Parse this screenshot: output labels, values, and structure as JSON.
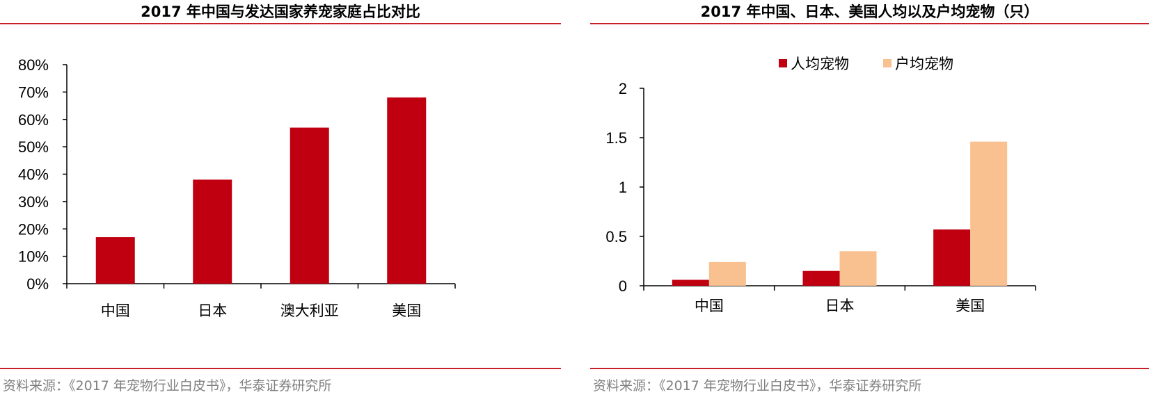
{
  "colors": {
    "accent_rule": "#c8202a",
    "bar_red": "#c00010",
    "bar_peach": "#f9c090",
    "source_text": "#7f7f7f"
  },
  "source_text": "资料来源：《2017 年宠物行业白皮书》，华泰证券研究所",
  "chart_data": [
    {
      "type": "bar",
      "title": "2017 年中国与发达国家养宠家庭占比对比",
      "categories": [
        "中国",
        "日本",
        "澳大利亚",
        "美国"
      ],
      "values": [
        0.17,
        0.38,
        0.57,
        0.68
      ],
      "ylim": [
        0,
        0.8
      ],
      "yticks": [
        0,
        0.1,
        0.2,
        0.3,
        0.4,
        0.5,
        0.6,
        0.7,
        0.8
      ],
      "ytick_labels": [
        "0%",
        "10%",
        "20%",
        "30%",
        "40%",
        "50%",
        "60%",
        "70%",
        "80%"
      ],
      "xlabel": "",
      "ylabel": "",
      "grid": false,
      "legend": "none",
      "bar_color": "#c00010"
    },
    {
      "type": "bar",
      "title": "2017 年中国、日本、美国人均以及户均宠物（只）",
      "categories": [
        "中国",
        "日本",
        "美国"
      ],
      "series": [
        {
          "name": "人均宠物",
          "values": [
            0.06,
            0.15,
            0.57
          ],
          "color": "#c00010"
        },
        {
          "name": "户均宠物",
          "values": [
            0.24,
            0.35,
            1.46
          ],
          "color": "#f9c090"
        }
      ],
      "ylim": [
        0,
        2
      ],
      "yticks": [
        0,
        0.5,
        1,
        1.5,
        2
      ],
      "ytick_labels": [
        "0",
        "0.5",
        "1",
        "1.5",
        "2"
      ],
      "xlabel": "",
      "ylabel": "",
      "grid": false,
      "legend": "top-center"
    }
  ]
}
